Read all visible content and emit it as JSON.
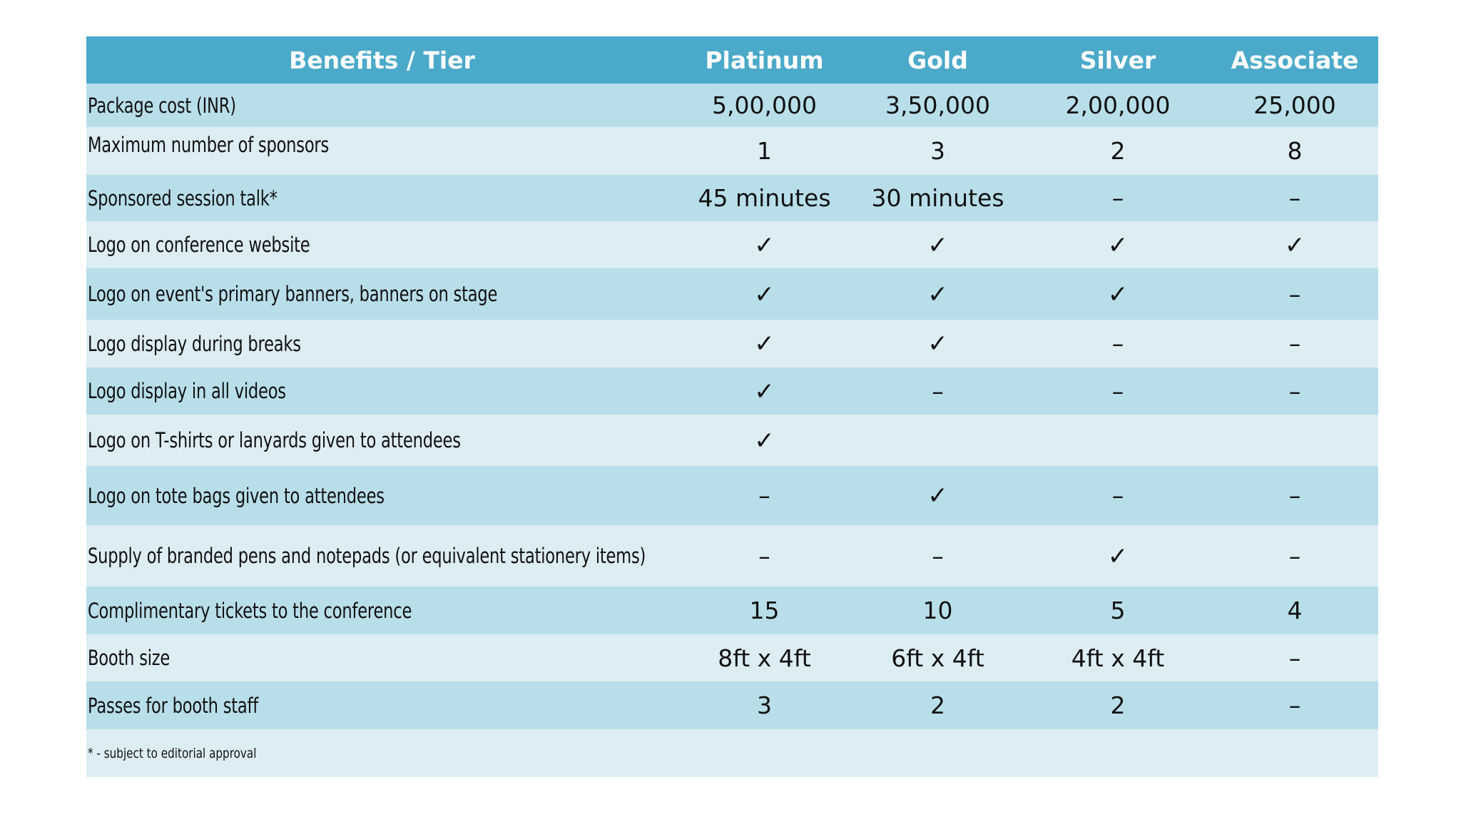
{
  "table": {
    "headers": [
      "Benefits / Tier",
      "Platinum",
      "Gold",
      "Silver",
      "Associate"
    ],
    "rows": [
      {
        "label": "Package cost (INR)",
        "values": [
          "5,00,000",
          "3,50,000",
          "2,00,000",
          "25,000"
        ]
      },
      {
        "label": "Maximum number of sponsors",
        "values": [
          "1",
          "3",
          "2",
          "8"
        ]
      },
      {
        "label": "Sponsored session talk*",
        "values": [
          "45 minutes",
          "30 minutes",
          "–",
          "–"
        ]
      },
      {
        "label": "Logo on conference website",
        "values": [
          "✓",
          "✓",
          "✓",
          "✓"
        ]
      },
      {
        "label": "Logo on event's primary banners, banners on stage",
        "values": [
          "✓",
          "✓",
          "✓",
          "–"
        ]
      },
      {
        "label": "Logo display during breaks",
        "values": [
          "✓",
          "✓",
          "–",
          "–"
        ]
      },
      {
        "label": "Logo display in all videos",
        "values": [
          "✓",
          "–",
          "–",
          "–"
        ]
      },
      {
        "label": "Logo on T-shirts or lanyards given to attendees",
        "values": [
          "✓",
          "",
          "",
          ""
        ]
      },
      {
        "label": "Logo on tote bags given to attendees",
        "values": [
          "–",
          "✓",
          "–",
          "–"
        ]
      },
      {
        "label": "Supply of branded pens and notepads (or equivalent stationery items)",
        "values": [
          "–",
          "–",
          "✓",
          "–"
        ]
      },
      {
        "label": "Complimentary tickets to the conference",
        "values": [
          "15",
          "10",
          "5",
          "4"
        ]
      },
      {
        "label": "Booth size",
        "values": [
          "8ft x 4ft",
          "6ft x 4ft",
          "4ft x 4ft",
          "–"
        ]
      },
      {
        "label": "Passes for booth staff",
        "values": [
          "3",
          "2",
          "2",
          "–"
        ]
      }
    ],
    "footnote": "* -  subject to editorial approval"
  },
  "colors": {
    "header_bg": "#4ba9c9",
    "row_dark": "#b8dee9",
    "row_light": "#dcedf3"
  }
}
